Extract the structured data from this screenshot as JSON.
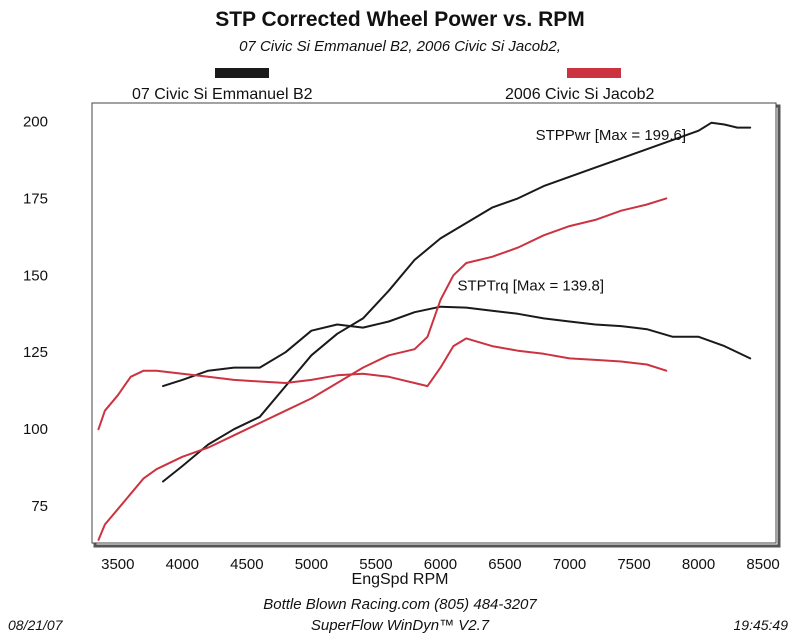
{
  "chart_data": {
    "type": "line",
    "title": "STP Corrected Wheel Power vs. RPM",
    "subtitle": "07 Civic Si Emmanuel B2, 2006 Civic Si Jacob2,",
    "xlabel": "EngSpd  RPM",
    "ylabel": "",
    "xlim": [
      3300,
      8600
    ],
    "ylim": [
      63,
      206
    ],
    "x_ticks": [
      3500,
      4000,
      4500,
      5000,
      5500,
      6000,
      6500,
      7000,
      7500,
      8000,
      8500
    ],
    "y_ticks": [
      75,
      100,
      125,
      150,
      175,
      200
    ],
    "grid": false,
    "legend_placement": "top",
    "legend": [
      {
        "label": "07 Civic Si Emmanuel B2",
        "color": "#1a1a1a"
      },
      {
        "label": "2006 Civic Si Jacob2",
        "color": "#cc3340"
      }
    ],
    "annotations": [
      {
        "text": "STPPwr [Max = 199.6]",
        "x": 7320,
        "y": 194
      },
      {
        "text": "STPTrq [Max = 139.8]",
        "x": 6700,
        "y": 145
      }
    ],
    "series": [
      {
        "name": "07 Civic Si Emmanuel B2",
        "metric": "power",
        "color": "#1a1a1a",
        "x": [
          3850,
          4000,
          4200,
          4400,
          4600,
          4800,
          5000,
          5200,
          5400,
          5600,
          5800,
          6000,
          6200,
          6400,
          6600,
          6800,
          7000,
          7200,
          7400,
          7600,
          7800,
          8000,
          8100,
          8200,
          8300,
          8400
        ],
        "y": [
          83,
          88,
          95,
          100,
          104,
          114,
          124,
          131,
          136,
          145,
          155,
          162,
          167,
          172,
          175,
          179,
          182,
          185,
          188,
          191,
          194,
          197,
          199.6,
          199,
          198,
          198
        ]
      },
      {
        "name": "07 Civic Si Emmanuel B2",
        "metric": "torque",
        "color": "#1a1a1a",
        "x": [
          3850,
          4000,
          4200,
          4400,
          4600,
          4800,
          5000,
          5200,
          5400,
          5600,
          5800,
          6000,
          6200,
          6400,
          6600,
          6800,
          7000,
          7200,
          7400,
          7600,
          7800,
          8000,
          8200,
          8400
        ],
        "y": [
          114,
          116,
          119,
          120,
          120,
          125,
          132,
          134,
          133,
          135,
          138,
          139.8,
          139.5,
          138.5,
          137.5,
          136,
          135,
          134,
          133.5,
          132.5,
          130,
          130,
          127,
          123
        ]
      },
      {
        "name": "2006 Civic Si Jacob2",
        "metric": "power",
        "color": "#cc3340",
        "x": [
          3350,
          3400,
          3500,
          3600,
          3700,
          3800,
          4000,
          4200,
          4400,
          4600,
          4800,
          5000,
          5200,
          5400,
          5600,
          5800,
          5900,
          6000,
          6100,
          6200,
          6400,
          6600,
          6800,
          7000,
          7200,
          7400,
          7600,
          7750
        ],
        "y": [
          64,
          69,
          74,
          79,
          84,
          87,
          91,
          94,
          98,
          102,
          106,
          110,
          115,
          120,
          124,
          126,
          130,
          142,
          150,
          154,
          156,
          159,
          163,
          166,
          168,
          171,
          173,
          175
        ]
      },
      {
        "name": "2006 Civic Si Jacob2",
        "metric": "torque",
        "color": "#cc3340",
        "x": [
          3350,
          3400,
          3500,
          3600,
          3700,
          3800,
          4000,
          4200,
          4400,
          4600,
          4800,
          5000,
          5200,
          5400,
          5600,
          5800,
          5900,
          6000,
          6100,
          6200,
          6400,
          6600,
          6800,
          7000,
          7200,
          7400,
          7600,
          7750
        ],
        "y": [
          100,
          106,
          111,
          117,
          119,
          119,
          118,
          117,
          116,
          115.5,
          115,
          116,
          117.5,
          118,
          117,
          115,
          114,
          120,
          127,
          129.5,
          127,
          125.5,
          124.5,
          123,
          122.5,
          122,
          121,
          119
        ]
      }
    ]
  },
  "footer": {
    "line1": "Bottle Blown Racing.com (805) 484-3207",
    "line2": "SuperFlow WinDyn™ V2.7",
    "date": "08/21/07",
    "time": "19:45:49"
  }
}
